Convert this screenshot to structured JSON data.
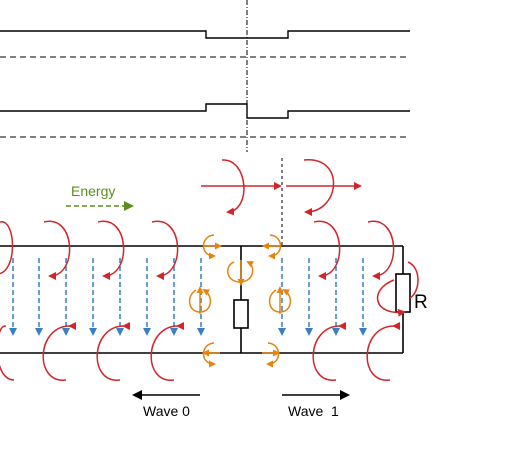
{
  "labels": {
    "energy": "Energy",
    "resistor": "R",
    "wave0": "Wave 0",
    "wave1": "Wave  1"
  },
  "colors": {
    "line": "#000000",
    "field_red": "#d0262a",
    "field_blue": "#3a7fc1",
    "field_orange": "#e8830e",
    "energy_green": "#5a8f1e"
  }
}
